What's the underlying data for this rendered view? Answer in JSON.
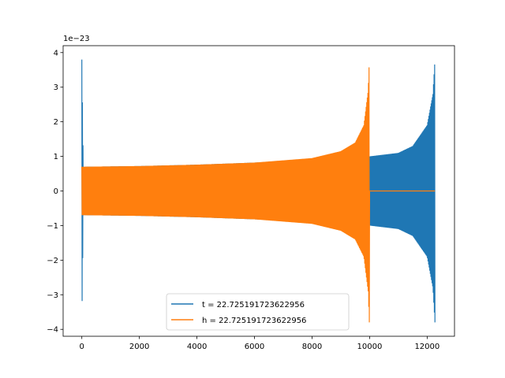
{
  "chart_data": {
    "type": "line",
    "title": "",
    "xlabel": "",
    "ylabel": "",
    "y_offset_label": "1e−23",
    "xlim": [
      -650,
      12950
    ],
    "ylim": [
      -4.2,
      4.2
    ],
    "grid": false,
    "legend_position": "lower center",
    "x_ticks": [
      0,
      2000,
      4000,
      6000,
      8000,
      10000,
      12000
    ],
    "x_tick_labels": [
      "0",
      "2000",
      "4000",
      "6000",
      "8000",
      "10000",
      "12000"
    ],
    "y_ticks": [
      -4,
      -3,
      -2,
      -1,
      0,
      1,
      2,
      3,
      4
    ],
    "y_tick_labels": [
      "−4",
      "−3",
      "−2",
      "−1",
      "0",
      "1",
      "2",
      "3",
      "4"
    ],
    "series": [
      {
        "name": "t = 22.725191723622956",
        "color": "#1f77b4",
        "description_points": {
          "x": [
            0,
            50,
            2000,
            4000,
            6000,
            8000,
            9000,
            9500,
            10000,
            11000,
            11500,
            12000,
            12200,
            12270
          ],
          "envelope": [
            3.8,
            0.7,
            0.72,
            0.76,
            0.82,
            0.9,
            0.95,
            0.97,
            1.0,
            1.1,
            1.3,
            1.9,
            2.8,
            3.8
          ]
        }
      },
      {
        "name": "h = 22.725191723622956",
        "color": "#ff7f0e",
        "description_points": {
          "x": [
            0,
            2000,
            4000,
            6000,
            8000,
            9000,
            9500,
            9800,
            9950,
            9990,
            10000,
            12270
          ],
          "envelope": [
            0.7,
            0.72,
            0.76,
            0.82,
            0.95,
            1.15,
            1.4,
            1.9,
            2.9,
            3.8,
            0.0,
            0.0
          ]
        }
      }
    ]
  }
}
